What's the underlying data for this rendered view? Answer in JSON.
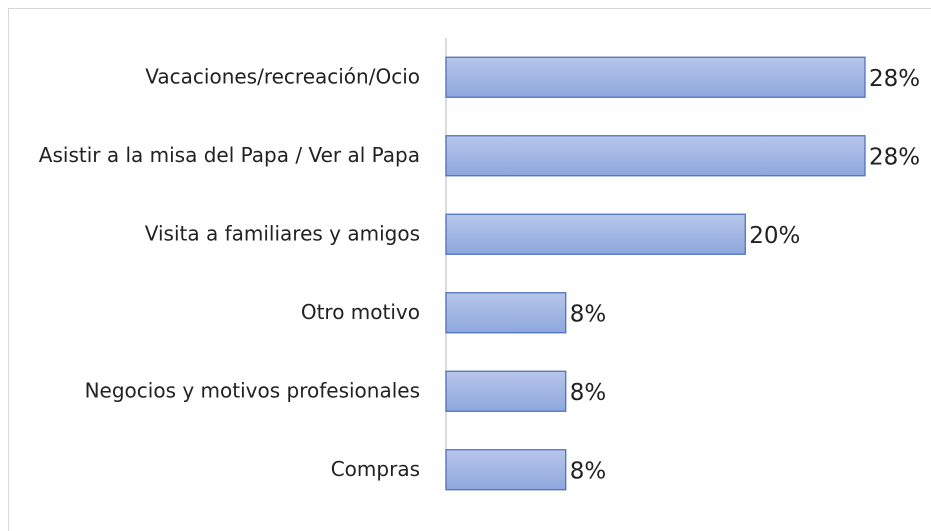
{
  "chart_data": {
    "type": "bar",
    "orientation": "horizontal",
    "categories": [
      "Vacaciones/recreación/Ocio",
      "Asistir a la misa del Papa / Ver al Papa",
      "Visita a familiares y amigos",
      "Otro motivo",
      "Negocios y motivos profesionales",
      "Compras"
    ],
    "values": [
      28,
      28,
      20,
      8,
      8,
      8
    ],
    "value_labels": [
      "28%",
      "28%",
      "20%",
      "8%",
      "8%",
      "8%"
    ],
    "color": "#8fa8de"
  }
}
